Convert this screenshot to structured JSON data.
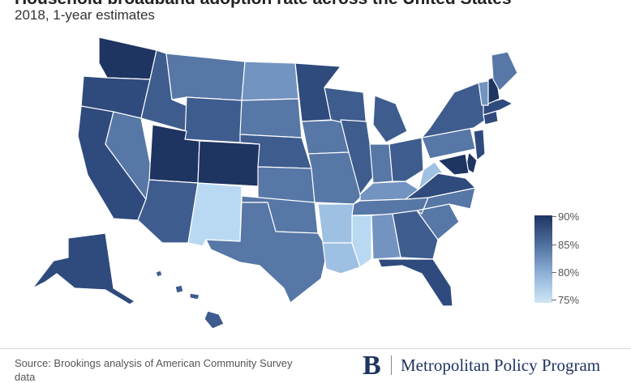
{
  "header": {
    "title": "Household broadband adoption rate across the United States",
    "subtitle": "2018, 1-year estimates"
  },
  "map": {
    "region": "United States",
    "shading": "choropleth by state",
    "colors": {
      "very_high": "#1e3461",
      "high": "#2f4a7d",
      "upper_mid": "#3e5d8e",
      "mid": "#5777a6",
      "lower_mid": "#7393c0",
      "low": "#9ec0e2",
      "very_low": "#b9d9f2",
      "border": "#ffffff"
    }
  },
  "legend": {
    "labels": [
      "90%",
      "85%",
      "80%",
      "75%"
    ],
    "scale_top": "#1e3461",
    "scale_bottom": "#cfe6f6"
  },
  "footer": {
    "source": "Source: Brookings analysis of American Community Survey",
    "source_cut": "data",
    "logo_letter": "B",
    "organization": "Metropolitan Policy Program"
  }
}
